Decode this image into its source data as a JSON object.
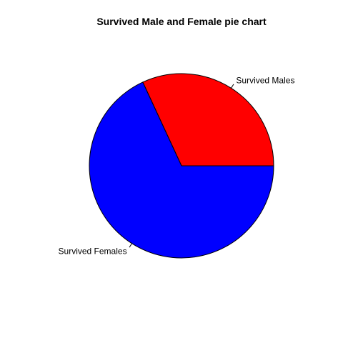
{
  "chart_data": {
    "type": "pie",
    "title": "Survived Male and Female pie chart",
    "slices": [
      {
        "label": "Survived Males",
        "value": 31.9,
        "color": "#ff0000"
      },
      {
        "label": "Survived Females",
        "value": 68.1,
        "color": "#0000ff"
      }
    ],
    "start_angle_deg": 0,
    "direction": "counterclockwise",
    "border_color": "#000000"
  }
}
